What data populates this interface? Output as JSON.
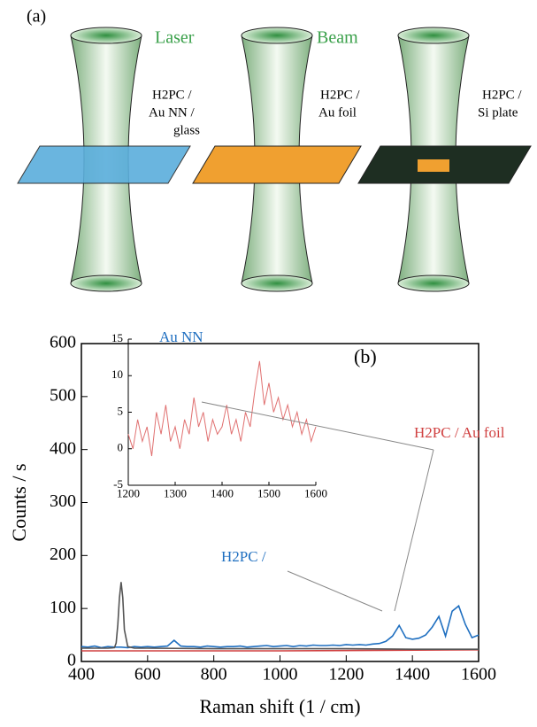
{
  "panel_a": {
    "label": "(a)",
    "beam_words": [
      "Laser",
      "Beam"
    ],
    "samples": [
      [
        "H2PC /",
        "Au NN /",
        "glass"
      ],
      [
        "H2PC /",
        "Au foil"
      ],
      [
        "H2PC /",
        "Si plate"
      ]
    ]
  },
  "chart_data": [
    {
      "type": "line",
      "panel_label": "(b)",
      "x_label": "Raman shift (1 / cm)",
      "y_label": "Counts / s",
      "xlim": [
        400,
        1600
      ],
      "ylim": [
        0,
        600
      ],
      "xticks": [
        400,
        600,
        800,
        1000,
        1200,
        1400,
        1600
      ],
      "yticks": [
        0,
        100,
        200,
        300,
        400,
        500,
        600
      ],
      "annotations": [
        "Au NN",
        "H2PC / Au foil",
        "H2PC /"
      ],
      "series": [
        {
          "color": "#1f6fc0",
          "x": [
            400,
            420,
            440,
            460,
            480,
            500,
            520,
            540,
            560,
            580,
            600,
            620,
            640,
            660,
            680,
            700,
            720,
            740,
            760,
            780,
            800,
            820,
            840,
            860,
            880,
            900,
            920,
            940,
            960,
            980,
            1000,
            1020,
            1040,
            1060,
            1080,
            1100,
            1120,
            1140,
            1160,
            1180,
            1200,
            1220,
            1240,
            1260,
            1280,
            1300,
            1320,
            1340,
            1360,
            1380,
            1400,
            1420,
            1440,
            1460,
            1480,
            1500,
            1520,
            1540,
            1560,
            1580,
            1600
          ],
          "values": [
            28,
            27,
            29,
            26,
            28,
            27,
            27,
            26,
            28,
            27,
            28,
            27,
            28,
            29,
            40,
            29,
            28,
            28,
            27,
            29,
            28,
            27,
            28,
            28,
            29,
            27,
            28,
            29,
            30,
            28,
            29,
            30,
            28,
            30,
            29,
            31,
            30,
            30,
            31,
            30,
            32,
            31,
            32,
            31,
            33,
            34,
            38,
            48,
            68,
            45,
            42,
            44,
            50,
            65,
            85,
            48,
            95,
            105,
            70,
            45,
            50
          ]
        },
        {
          "color": "#d04040",
          "x": [
            400,
            1000,
            1300,
            1600
          ],
          "values": [
            20,
            20,
            21,
            22
          ]
        },
        {
          "color": "#555555",
          "x": [
            400,
            480,
            500,
            505,
            510,
            515,
            520,
            525,
            530,
            540,
            560,
            600,
            800,
            1000,
            1200,
            1400,
            1600
          ],
          "values": [
            25,
            25,
            26,
            35,
            70,
            120,
            150,
            120,
            60,
            28,
            25,
            25,
            24,
            24,
            24,
            23,
            23
          ]
        }
      ]
    },
    {
      "type": "line",
      "xlim": [
        1200,
        1600
      ],
      "ylim": [
        -5,
        15
      ],
      "xticks": [
        1200,
        1300,
        1400,
        1500,
        1600
      ],
      "yticks": [
        -5,
        0,
        5,
        10,
        15
      ],
      "series": [
        {
          "color": "#e07070",
          "x": [
            1200,
            1210,
            1220,
            1230,
            1240,
            1250,
            1260,
            1270,
            1280,
            1290,
            1300,
            1310,
            1320,
            1330,
            1340,
            1350,
            1360,
            1370,
            1380,
            1390,
            1400,
            1410,
            1420,
            1430,
            1440,
            1450,
            1460,
            1470,
            1480,
            1490,
            1500,
            1510,
            1520,
            1530,
            1540,
            1550,
            1560,
            1570,
            1580,
            1590,
            1600
          ],
          "values": [
            2,
            0,
            4,
            1,
            3,
            -1,
            5,
            2,
            6,
            1,
            3,
            0,
            4,
            2,
            7,
            3,
            5,
            1,
            4,
            2,
            3,
            6,
            2,
            4,
            1,
            5,
            3,
            8,
            12,
            6,
            9,
            5,
            7,
            4,
            6,
            3,
            5,
            2,
            4,
            1,
            3
          ]
        }
      ]
    }
  ]
}
